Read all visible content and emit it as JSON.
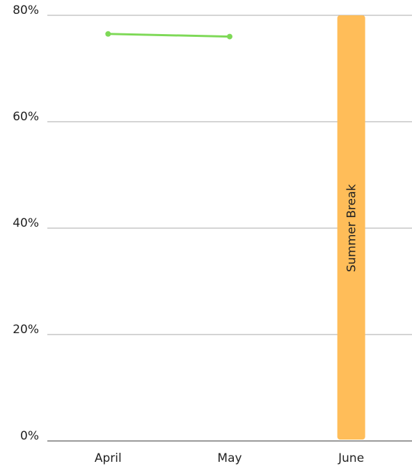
{
  "chart_data": {
    "type": "line",
    "categories": [
      "April",
      "May",
      "June"
    ],
    "series": [
      {
        "color": "#7ed957",
        "values": [
          76.5,
          76,
          null
        ]
      }
    ],
    "ylim": [
      0,
      80
    ],
    "yticks": [
      {
        "value": 0,
        "label": "0%"
      },
      {
        "value": 20,
        "label": "20%"
      },
      {
        "value": 40,
        "label": "40%"
      },
      {
        "value": 60,
        "label": "60%"
      },
      {
        "value": 80,
        "label": "80%"
      }
    ],
    "grid": true,
    "annotations": [
      {
        "text": "Summer Break",
        "x": "June",
        "color": "#ffbd59"
      }
    ]
  }
}
